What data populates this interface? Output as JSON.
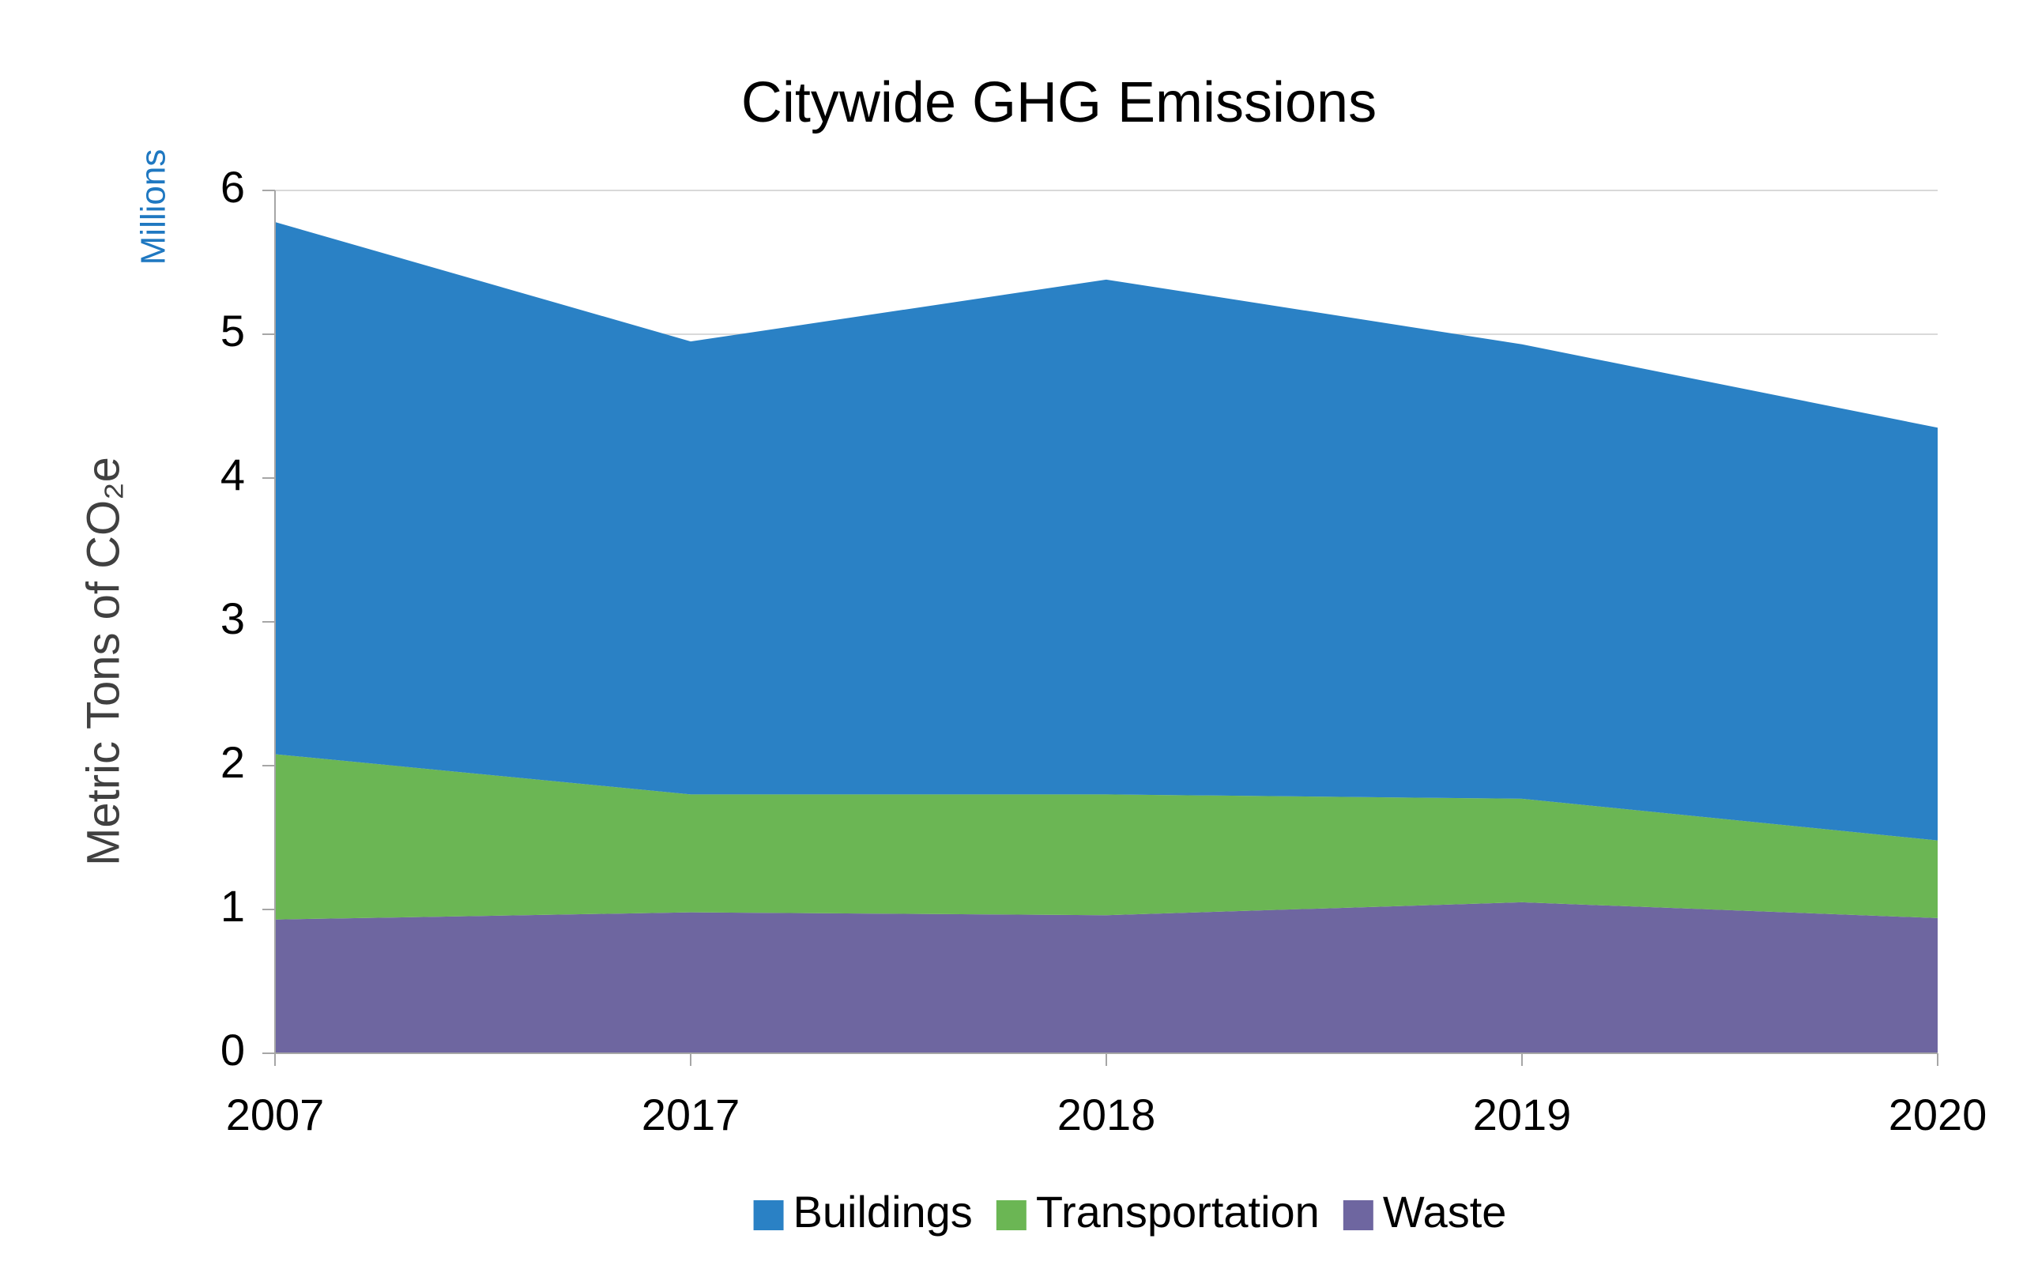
{
  "chart_data": {
    "type": "stacked_area",
    "title": "Citywide GHG Emissions",
    "y_label": "Metric Tons of CO₂e",
    "y_unit_label": "Millions",
    "categories": [
      "2007",
      "2017",
      "2018",
      "2019",
      "2020"
    ],
    "series": [
      {
        "name": "Buildings",
        "color": "#2a81c5",
        "values": [
          3.7,
          3.15,
          3.58,
          3.16,
          2.87
        ]
      },
      {
        "name": "Transportation",
        "color": "#6bb654",
        "values": [
          1.15,
          0.82,
          0.84,
          0.72,
          0.54
        ]
      },
      {
        "name": "Waste",
        "color": "#6e66a0",
        "values": [
          0.93,
          0.98,
          0.96,
          1.05,
          0.94
        ]
      }
    ],
    "ylim": [
      0,
      6
    ],
    "yticks": [
      0,
      1,
      2,
      3,
      4,
      5,
      6
    ],
    "grid": true,
    "legend": "bottom"
  }
}
